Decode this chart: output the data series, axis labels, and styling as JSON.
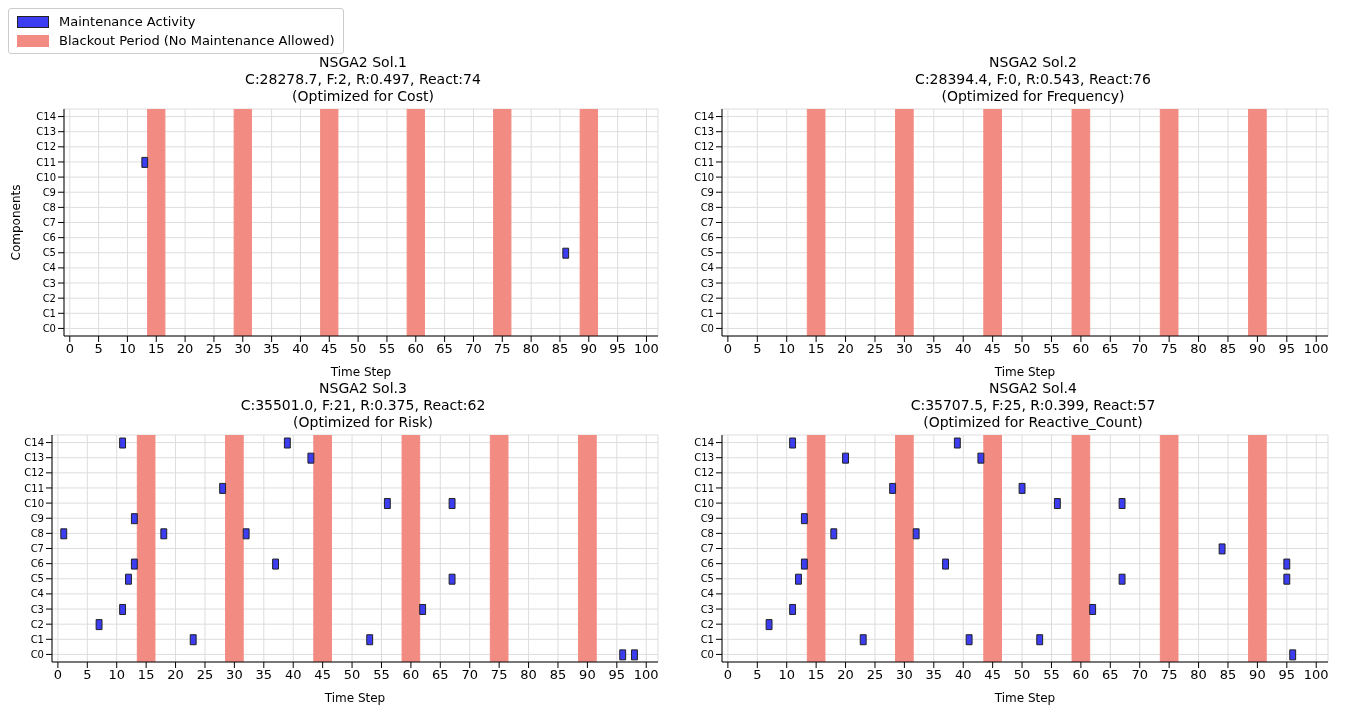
{
  "chart_data": [
    {
      "type": "bar",
      "orientation": "horizontal",
      "title": "NSGA2 Sol.1",
      "subtitle": "C:28278.7, F:2, R:0.497, React:74\n(Optimized for Cost)",
      "xlabel": "Time Step",
      "ylabel": "Components",
      "grid": true,
      "legend": "top left",
      "xlim": [
        -1,
        102
      ],
      "xticks": [
        0,
        5,
        10,
        15,
        20,
        25,
        30,
        35,
        40,
        45,
        50,
        55,
        60,
        65,
        70,
        75,
        80,
        85,
        90,
        95,
        100
      ],
      "categories": [
        "C14",
        "C13",
        "C12",
        "C11",
        "C10",
        "C9",
        "C8",
        "C7",
        "C6",
        "C5",
        "C4",
        "C3",
        "C2",
        "C1",
        "C0"
      ],
      "series": [
        {
          "name": "Maintenance Activity",
          "color": "#3c3cf0",
          "base": [
            null,
            null,
            null,
            12.5,
            null,
            null,
            null,
            null,
            null,
            85.5,
            null,
            null,
            null,
            null,
            null
          ],
          "values": [
            null,
            null,
            null,
            1,
            null,
            null,
            null,
            null,
            null,
            1,
            null,
            null,
            null,
            null,
            null
          ]
        }
      ],
      "bands": [
        {
          "axis": "x",
          "from": 13.5,
          "to": 16.5,
          "label": "Blackout Period (No Maintenance Allowed)",
          "color": "#f28b82"
        },
        {
          "axis": "x",
          "from": 28.5,
          "to": 31.5,
          "color": "#f28b82"
        },
        {
          "axis": "x",
          "from": 43.5,
          "to": 46.5,
          "color": "#f28b82"
        },
        {
          "axis": "x",
          "from": 58.5,
          "to": 61.5,
          "color": "#f28b82"
        },
        {
          "axis": "x",
          "from": 73.5,
          "to": 76.5,
          "color": "#f28b82"
        },
        {
          "axis": "x",
          "from": 88.5,
          "to": 91.5,
          "color": "#f28b82"
        }
      ]
    },
    {
      "type": "bar",
      "orientation": "horizontal",
      "title": "NSGA2 Sol.2",
      "subtitle": "C:28394.4, F:0, R:0.543, React:76\n(Optimized for Frequency)",
      "xlabel": "Time Step",
      "grid": true,
      "xlim": [
        -1,
        102
      ],
      "xticks": [
        0,
        5,
        10,
        15,
        20,
        25,
        30,
        35,
        40,
        45,
        50,
        55,
        60,
        65,
        70,
        75,
        80,
        85,
        90,
        95,
        100
      ],
      "categories": [
        "C14",
        "C13",
        "C12",
        "C11",
        "C10",
        "C9",
        "C8",
        "C7",
        "C6",
        "C5",
        "C4",
        "C3",
        "C2",
        "C1",
        "C0"
      ],
      "bands": [
        {
          "axis": "x",
          "from": 13.5,
          "to": 16.5,
          "color": "#f28b82"
        },
        {
          "axis": "x",
          "from": 28.5,
          "to": 31.5,
          "color": "#f28b82"
        },
        {
          "axis": "x",
          "from": 43.5,
          "to": 46.5,
          "color": "#f28b82"
        },
        {
          "axis": "x",
          "from": 58.5,
          "to": 61.5,
          "color": "#f28b82"
        },
        {
          "axis": "x",
          "from": 73.5,
          "to": 76.5,
          "color": "#f28b82"
        },
        {
          "axis": "x",
          "from": 88.5,
          "to": 91.5,
          "color": "#f28b82"
        }
      ]
    },
    {
      "type": "bar",
      "orientation": "horizontal",
      "title": "NSGA2 Sol.3",
      "subtitle": "C:35501.0, F:21, R:0.375, React:62\n(Optimized for Risk)",
      "xlabel": "Time Step",
      "grid": true,
      "xlim": [
        -1,
        102
      ],
      "xticks": [
        0,
        5,
        10,
        15,
        20,
        25,
        30,
        35,
        40,
        45,
        50,
        55,
        60,
        65,
        70,
        75,
        80,
        85,
        90,
        95,
        100
      ],
      "categories": [
        "C14",
        "C13",
        "C12",
        "C11",
        "C10",
        "C9",
        "C8",
        "C7",
        "C6",
        "C5",
        "C4",
        "C3",
        "C2",
        "C1",
        "C0"
      ],
      "series": [
        {
          "color": "#3c3cf0",
          "base": [
            10.5,
            42.5,
            null,
            27.5,
            55.5,
            12.5,
            0.5,
            null,
            12.5,
            11.5,
            null,
            10.5,
            6.5,
            22.5,
            95.5
          ],
          "values": [
            1,
            1,
            null,
            1,
            1,
            1,
            1,
            null,
            1,
            1,
            null,
            1,
            1,
            1,
            1
          ]
        },
        {
          "color": "#3c3cf0",
          "base": [
            38.5,
            null,
            null,
            null,
            66.5,
            null,
            17.5,
            null,
            36.5,
            66.5,
            null,
            61.5,
            null,
            52.5,
            97.5
          ],
          "values": [
            1,
            null,
            null,
            null,
            1,
            null,
            1,
            null,
            1,
            1,
            null,
            1,
            null,
            1,
            1
          ]
        },
        {
          "color": "#3c3cf0",
          "base": [
            null,
            null,
            null,
            null,
            null,
            null,
            31.5,
            null,
            null,
            null,
            null,
            null,
            null,
            null,
            null
          ],
          "values": [
            null,
            null,
            null,
            null,
            null,
            null,
            1,
            null,
            null,
            null,
            null,
            null,
            null,
            null,
            null
          ]
        }
      ],
      "bands": [
        {
          "axis": "x",
          "from": 13.5,
          "to": 16.5,
          "color": "#f28b82"
        },
        {
          "axis": "x",
          "from": 28.5,
          "to": 31.5,
          "color": "#f28b82"
        },
        {
          "axis": "x",
          "from": 43.5,
          "to": 46.5,
          "color": "#f28b82"
        },
        {
          "axis": "x",
          "from": 58.5,
          "to": 61.5,
          "color": "#f28b82"
        },
        {
          "axis": "x",
          "from": 73.5,
          "to": 76.5,
          "color": "#f28b82"
        },
        {
          "axis": "x",
          "from": 88.5,
          "to": 91.5,
          "color": "#f28b82"
        }
      ]
    },
    {
      "type": "bar",
      "orientation": "horizontal",
      "title": "NSGA2 Sol.4",
      "subtitle": "C:35707.5, F:25, R:0.399, React:57\n(Optimized for Reactive_Count)",
      "xlabel": "Time Step",
      "grid": true,
      "xlim": [
        -1,
        102
      ],
      "xticks": [
        0,
        5,
        10,
        15,
        20,
        25,
        30,
        35,
        40,
        45,
        50,
        55,
        60,
        65,
        70,
        75,
        80,
        85,
        90,
        95,
        100
      ],
      "categories": [
        "C14",
        "C13",
        "C12",
        "C11",
        "C10",
        "C9",
        "C8",
        "C7",
        "C6",
        "C5",
        "C4",
        "C3",
        "C2",
        "C1",
        "C0"
      ],
      "series": [
        {
          "color": "#3c3cf0",
          "base": [
            10.5,
            19.5,
            null,
            27.5,
            55.5,
            12.5,
            17.5,
            83.5,
            12.5,
            11.5,
            null,
            10.5,
            6.5,
            22.5,
            95.5
          ],
          "values": [
            1,
            1,
            null,
            1,
            1,
            1,
            1,
            1,
            1,
            1,
            null,
            1,
            1,
            1,
            1
          ]
        },
        {
          "color": "#3c3cf0",
          "base": [
            38.5,
            42.5,
            null,
            49.5,
            66.5,
            null,
            31.5,
            null,
            36.5,
            66.5,
            null,
            61.5,
            null,
            40.5,
            null
          ],
          "values": [
            1,
            1,
            null,
            1,
            1,
            null,
            1,
            null,
            1,
            1,
            null,
            1,
            null,
            1,
            null
          ]
        },
        {
          "color": "#3c3cf0",
          "base": [
            null,
            null,
            null,
            null,
            null,
            null,
            null,
            null,
            94.5,
            94.5,
            null,
            null,
            null,
            52.5,
            null
          ],
          "values": [
            null,
            null,
            null,
            null,
            null,
            null,
            null,
            null,
            1,
            1,
            null,
            null,
            null,
            1,
            null
          ]
        }
      ],
      "bands": [
        {
          "axis": "x",
          "from": 13.5,
          "to": 16.5,
          "color": "#f28b82"
        },
        {
          "axis": "x",
          "from": 28.5,
          "to": 31.5,
          "color": "#f28b82"
        },
        {
          "axis": "x",
          "from": 43.5,
          "to": 46.5,
          "color": "#f28b82"
        },
        {
          "axis": "x",
          "from": 58.5,
          "to": 61.5,
          "color": "#f28b82"
        },
        {
          "axis": "x",
          "from": 73.5,
          "to": 76.5,
          "color": "#f28b82"
        },
        {
          "axis": "x",
          "from": 88.5,
          "to": 91.5,
          "color": "#f28b82"
        }
      ]
    }
  ]
}
